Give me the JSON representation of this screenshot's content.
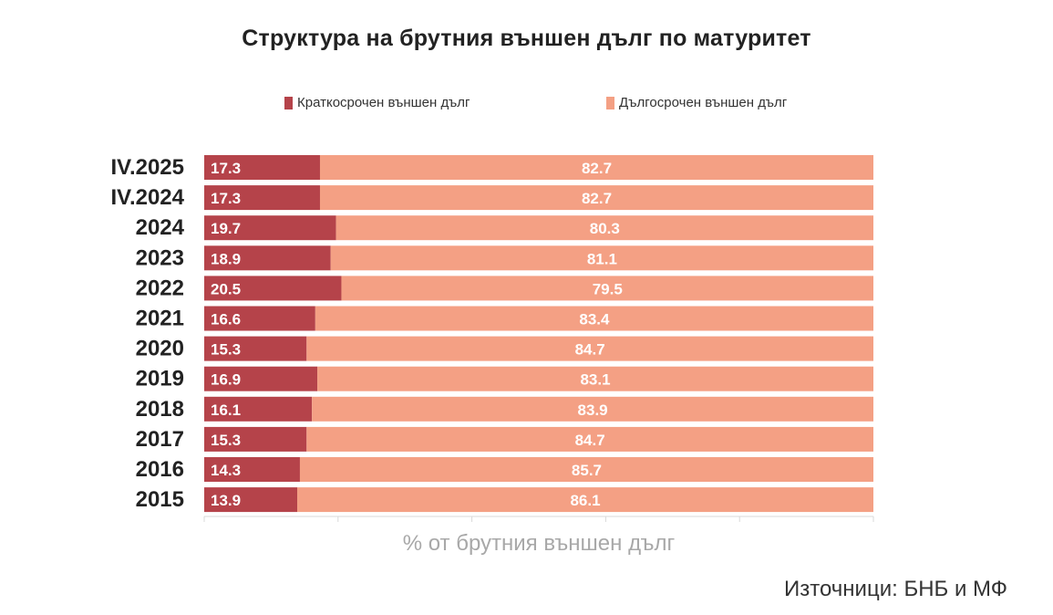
{
  "chart_data": {
    "type": "bar",
    "orientation": "horizontal",
    "stacked": true,
    "title": "Структура на брутния външен дълг по матуритет",
    "xlabel": "% от брутния външен дълг",
    "categories": [
      "IV.2025",
      "IV.2024",
      "2024",
      "2023",
      "2022",
      "2021",
      "2020",
      "2019",
      "2018",
      "2017",
      "2016",
      "2015"
    ],
    "series": [
      {
        "name": "Краткосрочен външен дълг",
        "color": "#b5434a",
        "values": [
          17.3,
          17.3,
          19.7,
          18.9,
          20.5,
          16.6,
          15.3,
          16.9,
          16.1,
          15.3,
          14.3,
          13.9
        ]
      },
      {
        "name": "Дългосрочен външен дълг",
        "color": "#f4a084",
        "values": [
          82.7,
          82.7,
          80.3,
          81.1,
          79.5,
          83.4,
          84.7,
          83.1,
          83.9,
          84.7,
          85.7,
          86.1
        ]
      }
    ],
    "xlim": [
      0,
      100
    ],
    "grid": false,
    "legend": "top"
  },
  "source_note": "Източници: БНБ и МФ"
}
